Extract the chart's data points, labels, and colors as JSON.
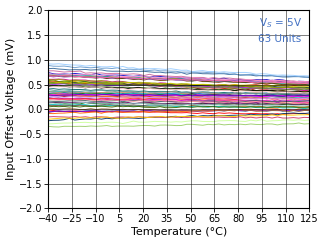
{
  "xlabel": "Temperature (°C)",
  "ylabel": "Input Offset Voltage (mV)",
  "xlim": [
    -40,
    125
  ],
  "ylim": [
    -2,
    2
  ],
  "xticks": [
    -40,
    -25,
    -10,
    5,
    20,
    35,
    50,
    65,
    80,
    95,
    110,
    125
  ],
  "yticks": [
    -2,
    -1.5,
    -1,
    -0.5,
    0,
    0.5,
    1,
    1.5,
    2
  ],
  "annotation_line1": "V",
  "annotation_line2": " = 5V",
  "annotation_line3": "63 Units",
  "annotation_color": "#4472C4",
  "n_units": 63,
  "temp_start": -40,
  "temp_end": 125,
  "seed": 7,
  "background_color": "#ffffff",
  "xlabel_fontsize": 8,
  "ylabel_fontsize": 8,
  "tick_fontsize": 7,
  "annotation_fontsize": 7.5,
  "line_width": 0.7,
  "colors": [
    "#ff0000",
    "#cc0000",
    "#990000",
    "#cc3300",
    "#0000cc",
    "#0033cc",
    "#0066cc",
    "#003399",
    "#006600",
    "#009900",
    "#336600",
    "#669900",
    "#660099",
    "#9900cc",
    "#660066",
    "#993399",
    "#cc6600",
    "#ff9900",
    "#cc9900",
    "#ff6600",
    "#006666",
    "#009999",
    "#00cccc",
    "#33cccc",
    "#663300",
    "#996633",
    "#cc9966",
    "#996600",
    "#000000",
    "#333333",
    "#666666",
    "#999999",
    "#cc00cc",
    "#ff00ff",
    "#ff33cc",
    "#cc0099",
    "#003333",
    "#336666",
    "#669999",
    "#99cccc",
    "#ff6666",
    "#ff9999",
    "#ffcccc",
    "#ff3333",
    "#6600cc",
    "#9933ff",
    "#cc99ff",
    "#9966cc",
    "#336600",
    "#669933",
    "#99cc66",
    "#ccff99",
    "#003366",
    "#336699",
    "#6699cc",
    "#99ccff",
    "#cc6699",
    "#ff99cc",
    "#ff66aa",
    "#cc3366",
    "#ffcc00",
    "#999900",
    "#cccc00"
  ]
}
